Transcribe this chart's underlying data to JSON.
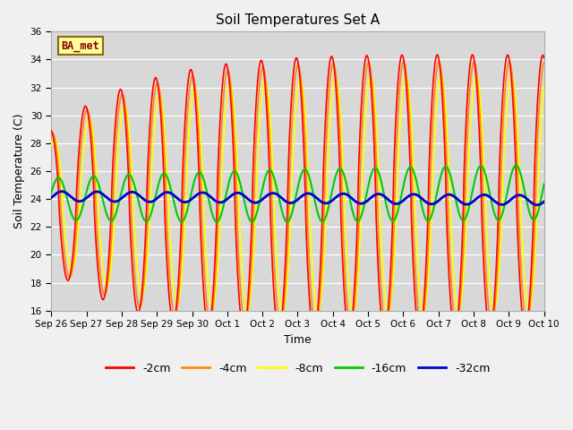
{
  "title": "Soil Temperatures Set A",
  "xlabel": "Time",
  "ylabel": "Soil Temperature (C)",
  "ylim": [
    16,
    36
  ],
  "yticks": [
    16,
    18,
    20,
    22,
    24,
    26,
    28,
    30,
    32,
    34,
    36
  ],
  "plot_bg_color": "#d8d8d8",
  "fig_bg_color": "#f0f0f0",
  "label_text": "BA_met",
  "label_box_color": "#ffff99",
  "label_border_color": "#8b6914",
  "label_text_color": "#8b0000",
  "line_colors": {
    "-2cm": "#ff0000",
    "-4cm": "#ff8c00",
    "-8cm": "#ffff00",
    "-16cm": "#00cc00",
    "-32cm": "#0000cd"
  },
  "line_widths": {
    "-2cm": 1.2,
    "-4cm": 1.2,
    "-8cm": 1.2,
    "-16cm": 1.5,
    "-32cm": 2.0
  },
  "xtick_labels": [
    "Sep 26",
    "Sep 27",
    "Sep 28",
    "Sep 29",
    "Sep 30",
    "Oct 1",
    "Oct 2",
    "Oct 3",
    "Oct 4",
    "Oct 5",
    "Oct 6",
    "Oct 7",
    "Oct 8",
    "Oct 9",
    "Oct 10"
  ],
  "xtick_positions": [
    0,
    1,
    2,
    3,
    4,
    5,
    6,
    7,
    8,
    9,
    10,
    11,
    12,
    13,
    14
  ]
}
